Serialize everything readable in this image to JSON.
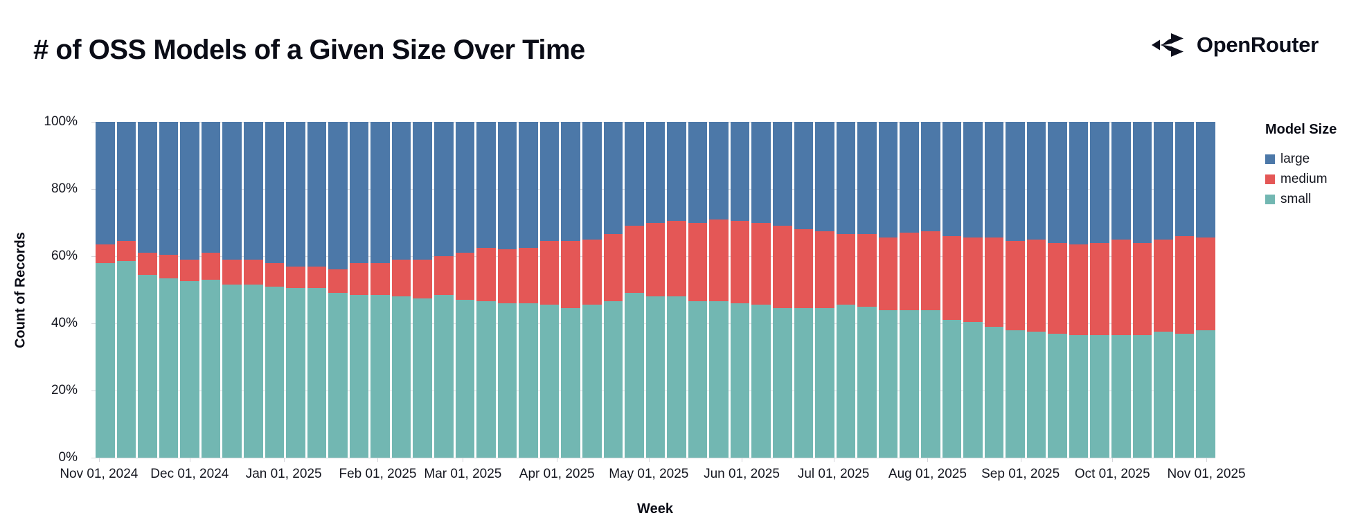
{
  "header": {
    "title": "# of OSS Models of a Given Size Over Time",
    "brand": "OpenRouter"
  },
  "chart_data": {
    "type": "bar",
    "stacked": true,
    "normalized_percent": true,
    "title": "# of OSS Models of a Given Size Over Time",
    "xlabel": "Week",
    "ylabel": "Count of Records",
    "ylim": [
      0,
      100
    ],
    "grid": true,
    "y_ticks": [
      {
        "label": "0%",
        "pct": 0
      },
      {
        "label": "20%",
        "pct": 20
      },
      {
        "label": "40%",
        "pct": 40
      },
      {
        "label": "60%",
        "pct": 60
      },
      {
        "label": "80%",
        "pct": 80
      },
      {
        "label": "100%",
        "pct": 100
      }
    ],
    "x_ticks": [
      {
        "label": "Nov 01, 2024",
        "pos": 0.003
      },
      {
        "label": "Dec 01, 2024",
        "pos": 0.084
      },
      {
        "label": "Jan 01, 2025",
        "pos": 0.168
      },
      {
        "label": "Feb 01, 2025",
        "pos": 0.252
      },
      {
        "label": "Mar 01, 2025",
        "pos": 0.328
      },
      {
        "label": "Apr 01, 2025",
        "pos": 0.412
      },
      {
        "label": "May 01, 2025",
        "pos": 0.494
      },
      {
        "label": "Jun 01, 2025",
        "pos": 0.577
      },
      {
        "label": "Jul 01, 2025",
        "pos": 0.659
      },
      {
        "label": "Aug 01, 2025",
        "pos": 0.743
      },
      {
        "label": "Sep 01, 2025",
        "pos": 0.826
      },
      {
        "label": "Oct 01, 2025",
        "pos": 0.908
      },
      {
        "label": "Nov 01, 2025",
        "pos": 0.992
      }
    ],
    "legend": {
      "title": "Model Size",
      "position": "right",
      "items": [
        {
          "name": "large",
          "color": "#4c78a8"
        },
        {
          "name": "medium",
          "color": "#e45756"
        },
        {
          "name": "small",
          "color": "#72b7b2"
        }
      ]
    },
    "weeks": 53,
    "series": [
      {
        "name": "small",
        "color": "#72b7b2",
        "values": [
          58,
          58.5,
          54.5,
          53.5,
          52.5,
          53,
          51.5,
          51.5,
          51,
          50.5,
          50.5,
          49,
          48.5,
          48.5,
          48,
          47.5,
          48.5,
          47,
          46.5,
          46,
          46,
          45.5,
          44.5,
          45.5,
          46.5,
          49,
          48,
          48,
          46.5,
          46.5,
          46,
          45.5,
          44.5,
          44.5,
          44.5,
          45.5,
          45,
          44,
          44,
          44,
          41,
          40.5,
          39,
          38,
          37.5,
          37,
          36.5,
          36.5,
          36.5,
          36.5,
          37.5,
          37,
          38
        ]
      },
      {
        "name": "medium",
        "color": "#e45756",
        "values": [
          5.5,
          6,
          6.5,
          7,
          6.5,
          8,
          7.5,
          7.5,
          7,
          6.5,
          6.5,
          7,
          9.5,
          9.5,
          11,
          11.5,
          11.5,
          14,
          16,
          16,
          16.5,
          19,
          20,
          19.5,
          20,
          20,
          22,
          22.5,
          23.5,
          24.5,
          24.5,
          24.5,
          24.5,
          23.5,
          23,
          21,
          21.5,
          21.5,
          23,
          23.5,
          25,
          25,
          26.5,
          26.5,
          27.5,
          27,
          27,
          27.5,
          28.5,
          27.5,
          27.5,
          29,
          27.5
        ]
      },
      {
        "name": "large",
        "color": "#4c78a8",
        "values": [
          36.5,
          35.5,
          39,
          39.5,
          41,
          39,
          41,
          41,
          42,
          43,
          43,
          44,
          42,
          42,
          41,
          41,
          40,
          39,
          37.5,
          38,
          37.5,
          35.5,
          35.5,
          35,
          33.5,
          31,
          30,
          29.5,
          30,
          29,
          29.5,
          30,
          31,
          32,
          32.5,
          33.5,
          33.5,
          34.5,
          33,
          32.5,
          34,
          34.5,
          34.5,
          35.5,
          35,
          36,
          36.5,
          36,
          35,
          36,
          35,
          34,
          34.5
        ]
      }
    ]
  }
}
